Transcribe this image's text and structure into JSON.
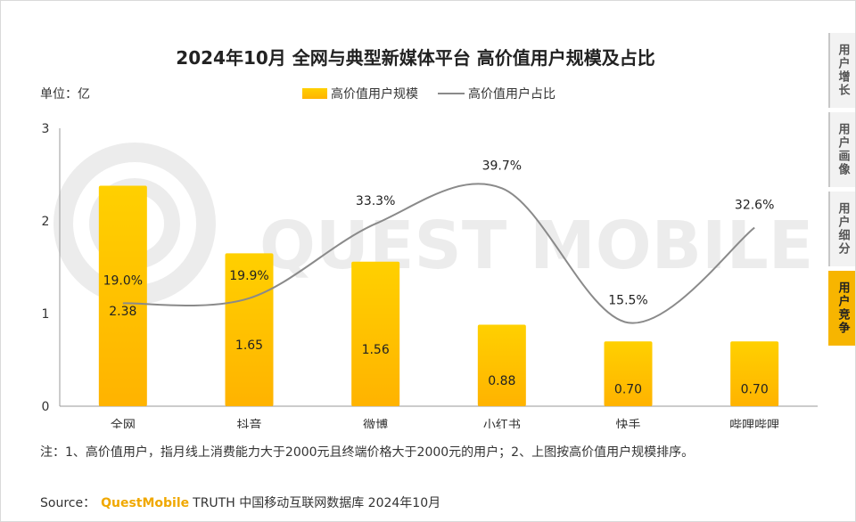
{
  "unit_label": "单位：亿",
  "watermark": "QUEST MOBILE",
  "note": "注：1、高价值用户，指月线上消费能力大于2000元且终端价格大于2000元的用户；2、上图按高价值用户规模排序。",
  "source": {
    "prefix": "Source：",
    "brand": "QuestMobile",
    "rest": "TRUTH 中国移动互联网数据库 2024年10月"
  },
  "side_tabs": [
    {
      "label": "用户增长",
      "active": false
    },
    {
      "label": "用户画像",
      "active": false
    },
    {
      "label": "用户细分",
      "active": false
    },
    {
      "label": "用户竞争",
      "active": true
    }
  ],
  "colors": {
    "bar_top": "#ffd000",
    "bar_bottom": "#ffb300",
    "line": "#8a8a8a",
    "accent": "#f7b500"
  },
  "chart_data": {
    "type": "bar",
    "title": "2024年10月 全网与典型新媒体平台 高价值用户规模及占比",
    "categories": [
      "全网",
      "抖音",
      "微博",
      "小红书",
      "快手",
      "哔哩哔哩"
    ],
    "series": [
      {
        "name": "高价值用户规模",
        "type": "bar",
        "values": [
          2.38,
          1.65,
          1.56,
          0.88,
          0.7,
          0.7
        ],
        "labels": [
          "2.38",
          "1.65",
          "1.56",
          "0.88",
          "0.70",
          "0.70"
        ]
      },
      {
        "name": "高价值用户占比",
        "type": "line",
        "values": [
          19.0,
          19.9,
          33.3,
          39.7,
          15.5,
          32.6
        ],
        "labels": [
          "19.0%",
          "19.9%",
          "33.3%",
          "39.7%",
          "15.5%",
          "32.6%"
        ]
      }
    ],
    "ylim": [
      0,
      3
    ],
    "yticks": [
      "0",
      "1",
      "2",
      "3"
    ],
    "legend": "top-center"
  }
}
